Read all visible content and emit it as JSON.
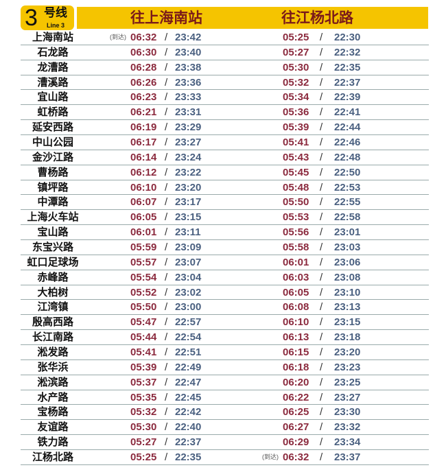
{
  "header": {
    "line_number": "3",
    "line_cn": "号线",
    "line_en": "Line 3",
    "dir1": "往上海南站",
    "dir2": "往江杨北路",
    "arrive_note": "(到达)",
    "separator": "/"
  },
  "colors": {
    "header": "#f5c400",
    "first_train": "#8b2a3e",
    "last_train": "#4a6080"
  },
  "rows": [
    [
      "上海南站",
      "06:32",
      "23:42",
      "05:25",
      "22:30"
    ],
    [
      "石龙路",
      "06:30",
      "23:40",
      "05:27",
      "22:32"
    ],
    [
      "龙漕路",
      "06:28",
      "23:38",
      "05:30",
      "22:35"
    ],
    [
      "漕溪路",
      "06:26",
      "23:36",
      "05:32",
      "22:37"
    ],
    [
      "宜山路",
      "06:23",
      "23:33",
      "05:34",
      "22:39"
    ],
    [
      "虹桥路",
      "06:21",
      "23:31",
      "05:36",
      "22:41"
    ],
    [
      "延安西路",
      "06:19",
      "23:29",
      "05:39",
      "22:44"
    ],
    [
      "中山公园",
      "06:17",
      "23:27",
      "05:41",
      "22:46"
    ],
    [
      "金沙江路",
      "06:14",
      "23:24",
      "05:43",
      "22:48"
    ],
    [
      "曹杨路",
      "06:12",
      "23:22",
      "05:45",
      "22:50"
    ],
    [
      "镇坪路",
      "06:10",
      "23:20",
      "05:48",
      "22:53"
    ],
    [
      "中潭路",
      "06:07",
      "23:17",
      "05:50",
      "22:55"
    ],
    [
      "上海火车站",
      "06:05",
      "23:15",
      "05:53",
      "22:58"
    ],
    [
      "宝山路",
      "06:01",
      "23:11",
      "05:56",
      "23:01"
    ],
    [
      "东宝兴路",
      "05:59",
      "23:09",
      "05:58",
      "23:03"
    ],
    [
      "虹口足球场",
      "05:57",
      "23:07",
      "06:01",
      "23:06"
    ],
    [
      "赤峰路",
      "05:54",
      "23:04",
      "06:03",
      "23:08"
    ],
    [
      "大柏树",
      "05:52",
      "23:02",
      "06:05",
      "23:10"
    ],
    [
      "江湾镇",
      "05:50",
      "23:00",
      "06:08",
      "23:13"
    ],
    [
      "殷高西路",
      "05:47",
      "22:57",
      "06:10",
      "23:15"
    ],
    [
      "长江南路",
      "05:44",
      "22:54",
      "06:13",
      "23:18"
    ],
    [
      "淞发路",
      "05:41",
      "22:51",
      "06:15",
      "23:20"
    ],
    [
      "张华浜",
      "05:39",
      "22:49",
      "06:18",
      "23:23"
    ],
    [
      "淞滨路",
      "05:37",
      "22:47",
      "06:20",
      "23:25"
    ],
    [
      "水产路",
      "05:35",
      "22:45",
      "06:22",
      "23:27"
    ],
    [
      "宝杨路",
      "05:32",
      "22:42",
      "06:25",
      "23:30"
    ],
    [
      "友谊路",
      "05:30",
      "22:40",
      "06:27",
      "23:32"
    ],
    [
      "铁力路",
      "05:27",
      "22:37",
      "06:29",
      "23:34"
    ],
    [
      "江杨北路",
      "05:25",
      "22:35",
      "06:32",
      "23:37"
    ]
  ]
}
